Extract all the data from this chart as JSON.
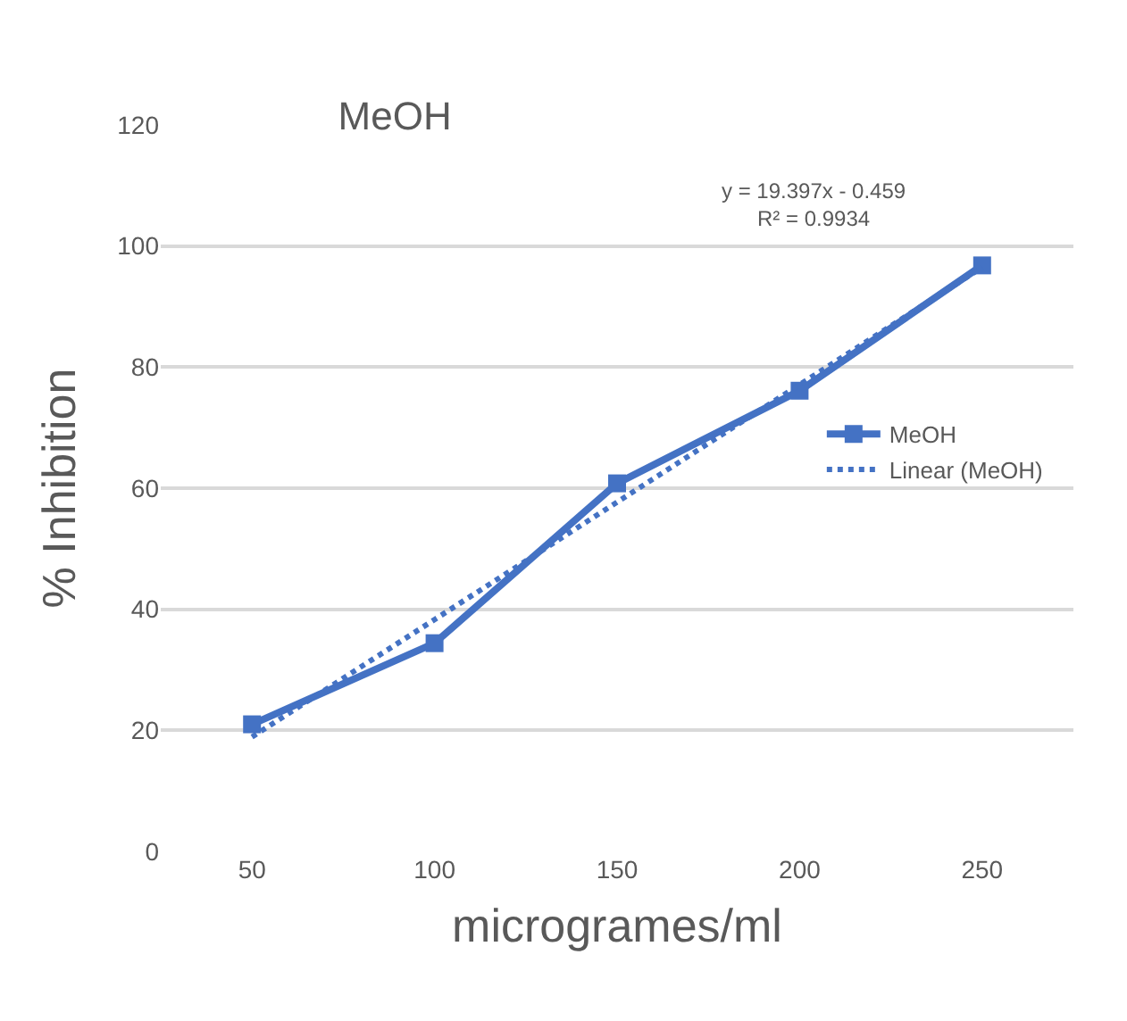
{
  "chart_data": {
    "type": "line",
    "title": "MeOH",
    "xlabel": "microgrames/ml",
    "ylabel": "% Inhibition",
    "categories": [
      "50",
      "100",
      "150",
      "200",
      "250"
    ],
    "series": [
      {
        "name": "MeOH",
        "color": "#4472c4",
        "values": [
          21,
          34.4,
          60.8,
          76.1,
          96.8
        ],
        "marker": "square",
        "line_style": "solid"
      },
      {
        "name": "Linear (MeOH)",
        "color": "#4472c4",
        "values": [
          18.9,
          38.3,
          57.7,
          77.1,
          96.5
        ],
        "marker": "none",
        "line_style": "dotted"
      }
    ],
    "annotations": [
      "y = 19.397x - 0.459\nR² = 0.9934"
    ],
    "ylim": [
      0,
      120
    ],
    "yticks": [
      0,
      20,
      40,
      60,
      80,
      100,
      120
    ],
    "grid": "y",
    "legend": "right"
  }
}
